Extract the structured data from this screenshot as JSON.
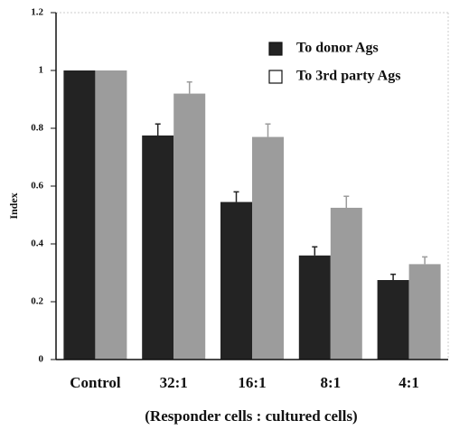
{
  "chart_data": {
    "type": "bar",
    "x_label": "(Responder cells : cultured cells)",
    "y_label": "Index",
    "categories": [
      "Control",
      "32:1",
      "16:1",
      "8:1",
      "4:1"
    ],
    "series": [
      {
        "name": "To donor Ags",
        "color": "#232323",
        "legend_color": "#232323",
        "values": [
          1,
          0.775,
          0.545,
          0.36,
          0.275
        ],
        "errors": [
          0,
          0.04,
          0.035,
          0.03,
          0.02
        ]
      },
      {
        "name": "To 3rd party Ags",
        "color": "#9c9c9c",
        "legend_color": "#ffffff",
        "values": [
          1,
          0.92,
          0.77,
          0.525,
          0.33
        ],
        "errors": [
          0,
          0.04,
          0.045,
          0.04,
          0.025
        ]
      }
    ],
    "ylim": [
      0,
      1.2
    ],
    "yticks": [
      0,
      0.2,
      0.4,
      0.6,
      0.8,
      1,
      1.2
    ],
    "grid": false
  }
}
